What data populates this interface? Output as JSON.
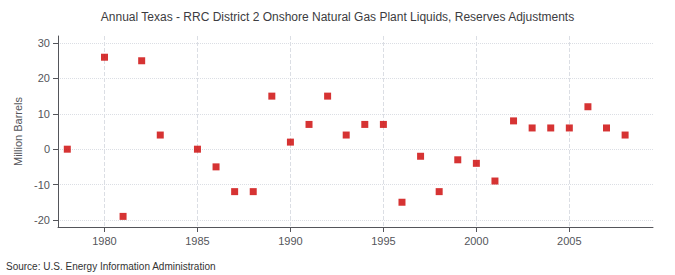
{
  "chart_data": {
    "type": "scatter",
    "title": "Annual Texas - RRC District 2 Onshore Natural Gas Plant Liquids, Reserves Adjustments",
    "ylabel": "Million Barrels",
    "annotation": "Source: U.S. Energy Information Administration",
    "color": "#cc0000",
    "marker": "square",
    "grid": true,
    "x": [
      1978,
      1980,
      1981,
      1982,
      1983,
      1985,
      1986,
      1987,
      1988,
      1989,
      1990,
      1991,
      1992,
      1993,
      1994,
      1995,
      1996,
      1997,
      1998,
      1999,
      2000,
      2001,
      2002,
      2003,
      2004,
      2005,
      2006,
      2007,
      2008
    ],
    "values": [
      0,
      26,
      -19,
      25,
      4,
      0,
      -5,
      -12,
      -12,
      15,
      2,
      7,
      15,
      4,
      7,
      7,
      -15,
      -2,
      -12,
      -3,
      -4,
      -9,
      8,
      6,
      6,
      6,
      12,
      6,
      4
    ],
    "xlim": [
      1977.5,
      2009.5
    ],
    "xticks": [
      1980,
      1985,
      1990,
      1995,
      2000,
      2005
    ],
    "ylim": [
      -22,
      32
    ],
    "yticks": [
      -20,
      -10,
      0,
      10,
      20,
      30
    ]
  }
}
